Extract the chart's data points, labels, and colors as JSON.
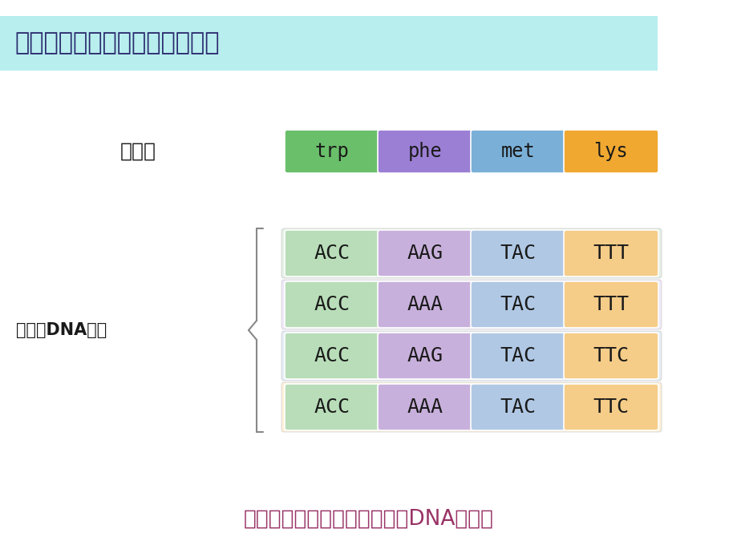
{
  "title": "（一）化学合成法获取目的基因",
  "title_bg": "#b8eeee",
  "title_color": "#2a2a6e",
  "bg_color": "#ffffff",
  "amino_label": "氨基酸",
  "dna_label": "可能的DNA序列",
  "bottom_text": "由已知氨基酸序列推测可能的DNA序列。",
  "bottom_text_color": "#993366",
  "amino_acids": [
    "trp",
    "phe",
    "met",
    "lys"
  ],
  "amino_colors": [
    "#6abf6a",
    "#9b7fd4",
    "#7ab0d8",
    "#f0a830"
  ],
  "dna_rows": [
    [
      "ACC",
      "AAG",
      "TAC",
      "TTT"
    ],
    [
      "ACC",
      "AAA",
      "TAC",
      "TTT"
    ],
    [
      "ACC",
      "AAG",
      "TAC",
      "TTC"
    ],
    [
      "ACC",
      "AAA",
      "TAC",
      "TTC"
    ]
  ],
  "dna_col_colors": [
    "#b8ddb8",
    "#c8b0dc",
    "#b0c8e4",
    "#f5cc88"
  ],
  "row_bg_colors": [
    "#e4f0e4",
    "#eee8f8",
    "#e4ecf4",
    "#fdf0d8"
  ]
}
